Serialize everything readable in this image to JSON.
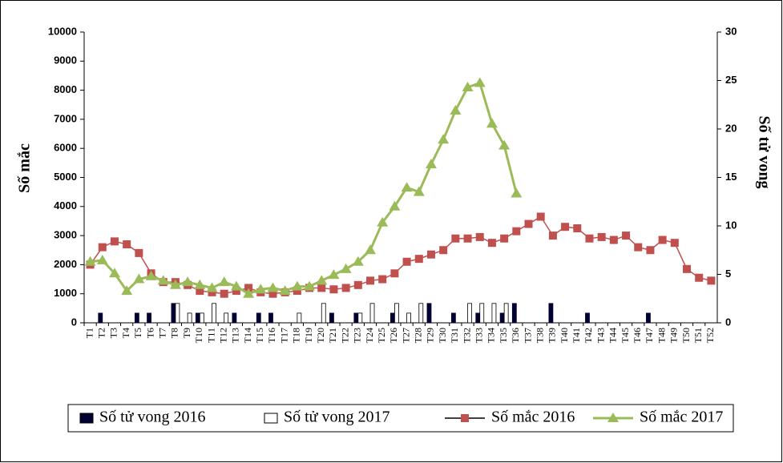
{
  "chart_data": {
    "type": "combo",
    "y_label": "Số mắc",
    "y2_label": "Số tử vong",
    "categories": [
      "T1",
      "T2",
      "T3",
      "T4",
      "T5",
      "T6",
      "T7",
      "T8",
      "T9",
      "T10",
      "T11",
      "T12",
      "T13",
      "T14",
      "T15",
      "T16",
      "T17",
      "T18",
      "T19",
      "T20",
      "T21",
      "T22",
      "T23",
      "T24",
      "T25",
      "T26",
      "T27",
      "T28",
      "T29",
      "T30",
      "T31",
      "T32",
      "T33",
      "T34",
      "T35",
      "T36",
      "T37",
      "T38",
      "T39",
      "T40",
      "T41",
      "T42",
      "T43",
      "T44",
      "T45",
      "T46",
      "T47",
      "T48",
      "T49",
      "T50",
      "T51",
      "T52"
    ],
    "ylim": [
      0,
      10000
    ],
    "yticks": [
      0,
      1000,
      2000,
      3000,
      4000,
      5000,
      6000,
      7000,
      8000,
      9000,
      10000
    ],
    "y2lim": [
      0,
      30
    ],
    "y2ticks": [
      0,
      5,
      10,
      15,
      20,
      25,
      30
    ],
    "legend": "bottom",
    "series": [
      {
        "name": "Số tử vong 2016",
        "type": "bar",
        "axis": "y2",
        "color": "#000033",
        "values": [
          0,
          1,
          0,
          0,
          1,
          1,
          0,
          2,
          0,
          1,
          0,
          0,
          1,
          0,
          1,
          1,
          0,
          0,
          0,
          0,
          1,
          0,
          1,
          0,
          0,
          1,
          0,
          0,
          2,
          0,
          1,
          0,
          1,
          0,
          1,
          2,
          0,
          0,
          2,
          0,
          0,
          1,
          0,
          0,
          0,
          0,
          1,
          0,
          0,
          0,
          0,
          0
        ]
      },
      {
        "name": "Số tử vong 2017",
        "type": "bar",
        "axis": "y2",
        "color": "#ffffff",
        "values": [
          0,
          0,
          0,
          0,
          0,
          0,
          0,
          2,
          1,
          1,
          2,
          1,
          0,
          0,
          0,
          0,
          0,
          1,
          0,
          2,
          0,
          0,
          1,
          2,
          0,
          2,
          1,
          2,
          0,
          0,
          0,
          2,
          2,
          2,
          2,
          0,
          null,
          null,
          null,
          null,
          null,
          null,
          null,
          null,
          null,
          null,
          null,
          null,
          null,
          null,
          null,
          null
        ]
      },
      {
        "name": "Số mắc 2016",
        "type": "line",
        "marker": "square",
        "color": "#c0504d",
        "values": [
          2000,
          2600,
          2800,
          2700,
          2400,
          1700,
          1400,
          1400,
          1300,
          1100,
          1050,
          1000,
          1100,
          1200,
          1050,
          1000,
          1050,
          1100,
          1200,
          1200,
          1150,
          1200,
          1300,
          1450,
          1500,
          1700,
          2100,
          2200,
          2350,
          2500,
          2900,
          2900,
          2950,
          2750,
          2900,
          3150,
          3400,
          3650,
          3000,
          3300,
          3250,
          2900,
          2950,
          2850,
          3000,
          2600,
          2500,
          2850,
          2750,
          1850,
          1550,
          1450
        ]
      },
      {
        "name": "Số mắc 2017",
        "type": "line",
        "marker": "triangle",
        "color": "#9bbb59",
        "values": [
          2100,
          2150,
          1700,
          1100,
          1500,
          1600,
          1450,
          1300,
          1400,
          1300,
          1200,
          1400,
          1250,
          1000,
          1150,
          1200,
          1100,
          1250,
          1250,
          1450,
          1650,
          1850,
          2100,
          2500,
          3450,
          4000,
          4650,
          4500,
          5450,
          6300,
          7300,
          8100,
          8250,
          6850,
          6100,
          4450,
          null,
          null,
          null,
          null,
          null,
          null,
          null,
          null,
          null,
          null,
          null,
          null,
          null,
          null,
          null,
          null
        ]
      }
    ]
  }
}
